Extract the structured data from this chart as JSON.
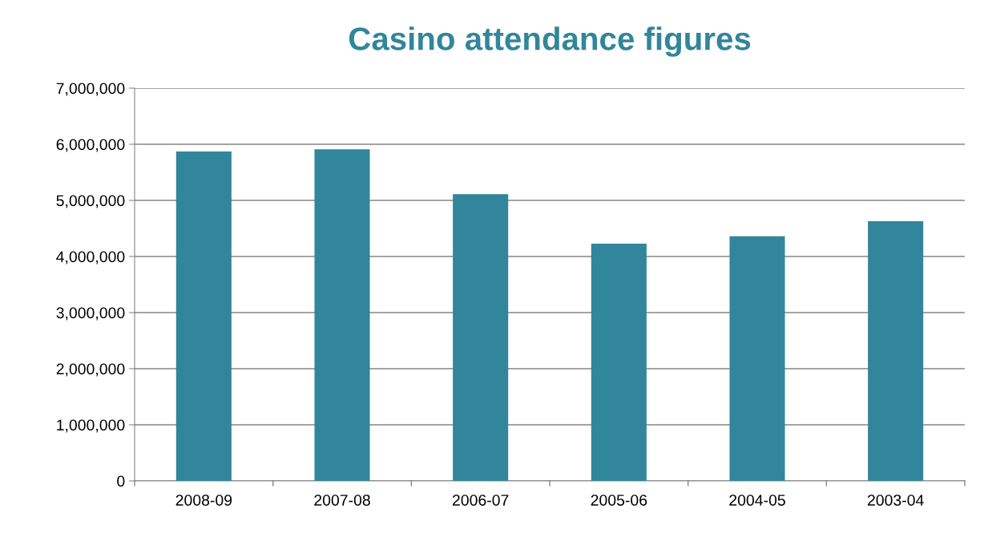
{
  "chart_data": {
    "type": "bar",
    "title": "Casino attendance figures",
    "categories": [
      "2008-09",
      "2007-08",
      "2006-07",
      "2005-06",
      "2004-05",
      "2003-04"
    ],
    "values": [
      5870000,
      5910000,
      5110000,
      4230000,
      4360000,
      4630000
    ],
    "color": "#31869b",
    "ylim": [
      0,
      7000000
    ],
    "yticks": [
      {
        "value": 0,
        "label": "0"
      },
      {
        "value": 1000000,
        "label": "1,000,000"
      },
      {
        "value": 2000000,
        "label": "2,000,000"
      },
      {
        "value": 3000000,
        "label": "3,000,000"
      },
      {
        "value": 4000000,
        "label": "4,000,000"
      },
      {
        "value": 5000000,
        "label": "5,000,000"
      },
      {
        "value": 6000000,
        "label": "6,000,000"
      },
      {
        "value": 7000000,
        "label": "7,000,000"
      }
    ],
    "grid": "y",
    "legend": false
  }
}
